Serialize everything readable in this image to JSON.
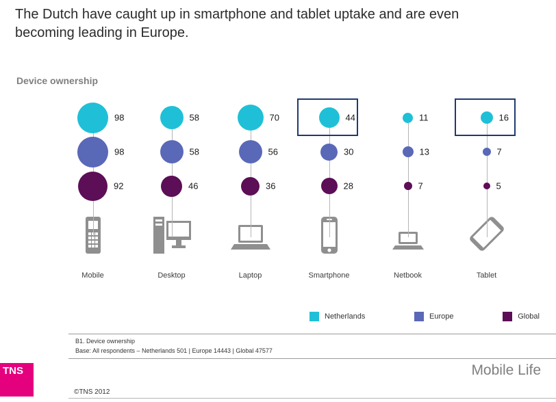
{
  "title": "The Dutch have caught up in smartphone and tablet uptake and are even becoming leading in Europe.",
  "chart_data": {
    "type": "bubble",
    "title": "Device ownership",
    "categories": [
      "Mobile",
      "Desktop",
      "Laptop",
      "Smartphone",
      "Netbook",
      "Tablet"
    ],
    "series": [
      {
        "name": "Netherlands",
        "color": "#1fc0d7",
        "values": [
          98,
          58,
          70,
          44,
          11,
          16
        ]
      },
      {
        "name": "Europe",
        "color": "#5a68b8",
        "values": [
          98,
          58,
          56,
          30,
          13,
          7
        ]
      },
      {
        "name": "Global",
        "color": "#5c0e56",
        "values": [
          92,
          46,
          36,
          28,
          7,
          5
        ]
      }
    ],
    "highlighted_categories": [
      "Smartphone",
      "Tablet"
    ],
    "highlight_color": "#1e3a6e",
    "legend_position": "bottom-right"
  },
  "legend": {
    "items": [
      {
        "label": "Netherlands",
        "color": "#1fc0d7"
      },
      {
        "label": "Europe",
        "color": "#5a68b8"
      },
      {
        "label": "Global",
        "color": "#5c0e56"
      }
    ]
  },
  "footnotes": {
    "line1": "B1. Device ownership",
    "line2": "Base: All respondents – Netherlands 501 | Europe 14443 | Global 47577"
  },
  "footer": {
    "logo_text": "TNS",
    "copyright": "©TNS 2012",
    "brand": "Mobile Life"
  }
}
